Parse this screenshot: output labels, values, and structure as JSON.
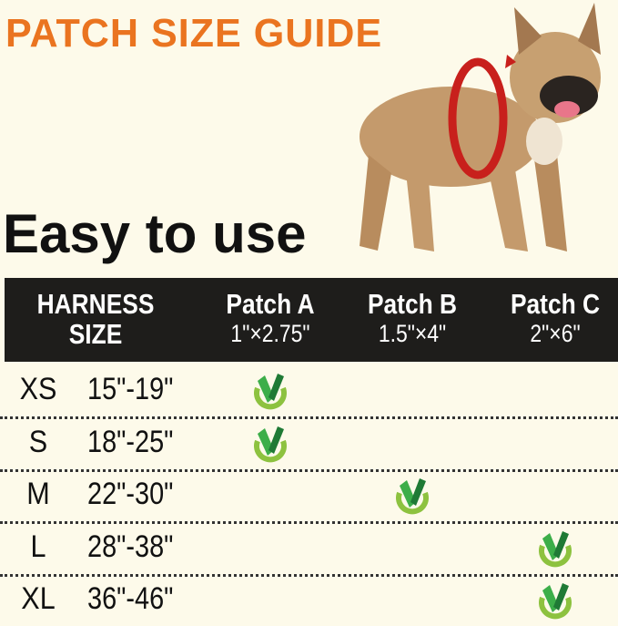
{
  "title": "PATCH SIZE GUIDE",
  "tagline": "Easy to use",
  "colors": {
    "title": "#ea7420",
    "header_bg": "#1e1d1b",
    "check_dark": "#1f7a35",
    "check_light": "#3cae49",
    "check_ring": "#8dc23f",
    "background": "#fdfaea"
  },
  "table": {
    "headers": [
      {
        "line1": "HARNESS",
        "line2": "SIZE"
      },
      {
        "line1": "Patch A",
        "line2": "1\"×2.75\""
      },
      {
        "line1": "Patch B",
        "line2": "1.5\"×4\""
      },
      {
        "line1": "Patch C",
        "line2": "2\"×6\""
      }
    ],
    "rows": [
      {
        "size": "XS",
        "range": "15\"-19\"",
        "patch": "A"
      },
      {
        "size": "S",
        "range": "18\"-25\"",
        "patch": "A"
      },
      {
        "size": "M",
        "range": "22\"-30\"",
        "patch": "B"
      },
      {
        "size": "L",
        "range": "28\"-38\"",
        "patch": "C"
      },
      {
        "size": "XL",
        "range": "36\"-46\"",
        "patch": "C"
      }
    ]
  },
  "icons": {
    "check": "check-badge-icon",
    "dog": "french-bulldog-photo"
  }
}
